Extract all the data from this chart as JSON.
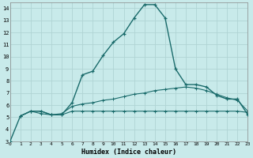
{
  "xlabel": "Humidex (Indice chaleur)",
  "bg_color": "#c8eaea",
  "grid_color": "#b0d4d4",
  "line_color": "#1a6b6b",
  "xlim": [
    0,
    23
  ],
  "ylim": [
    3,
    14.5
  ],
  "xticks": [
    0,
    1,
    2,
    3,
    4,
    5,
    6,
    7,
    8,
    9,
    10,
    11,
    12,
    13,
    14,
    15,
    16,
    17,
    18,
    19,
    20,
    21,
    22,
    23
  ],
  "yticks": [
    3,
    4,
    5,
    6,
    7,
    8,
    9,
    10,
    11,
    12,
    13,
    14
  ],
  "line1_x": [
    0,
    1,
    2,
    3,
    4,
    5,
    6,
    7,
    8,
    9,
    10,
    11,
    12,
    13,
    14,
    15,
    16,
    17,
    18,
    19,
    20,
    21,
    22,
    23
  ],
  "line1_y": [
    3.0,
    5.1,
    5.5,
    5.5,
    5.2,
    5.2,
    6.2,
    8.5,
    8.8,
    10.1,
    11.2,
    11.9,
    13.2,
    14.3,
    14.3,
    13.2,
    9.0,
    7.7,
    7.7,
    7.5,
    6.8,
    6.5,
    6.5,
    5.2
  ],
  "line2_x": [
    1,
    2,
    3,
    4,
    5,
    6,
    7,
    8,
    9,
    10,
    11,
    12,
    13,
    14,
    15,
    16,
    17,
    18,
    19,
    20,
    21,
    22,
    23
  ],
  "line2_y": [
    5.1,
    5.5,
    5.5,
    5.2,
    5.3,
    5.9,
    6.1,
    6.2,
    6.4,
    6.5,
    6.7,
    6.9,
    7.0,
    7.2,
    7.3,
    7.4,
    7.5,
    7.4,
    7.2,
    6.9,
    6.6,
    6.4,
    5.5
  ],
  "line3_x": [
    1,
    2,
    3,
    4,
    5,
    6,
    7,
    8,
    9,
    10,
    11,
    12,
    13,
    14,
    15,
    16,
    17,
    18,
    19,
    20,
    21,
    22,
    23
  ],
  "line3_y": [
    5.1,
    5.5,
    5.3,
    5.2,
    5.2,
    5.5,
    5.5,
    5.5,
    5.5,
    5.5,
    5.5,
    5.5,
    5.5,
    5.5,
    5.5,
    5.5,
    5.5,
    5.5,
    5.5,
    5.5,
    5.5,
    5.5,
    5.4
  ]
}
